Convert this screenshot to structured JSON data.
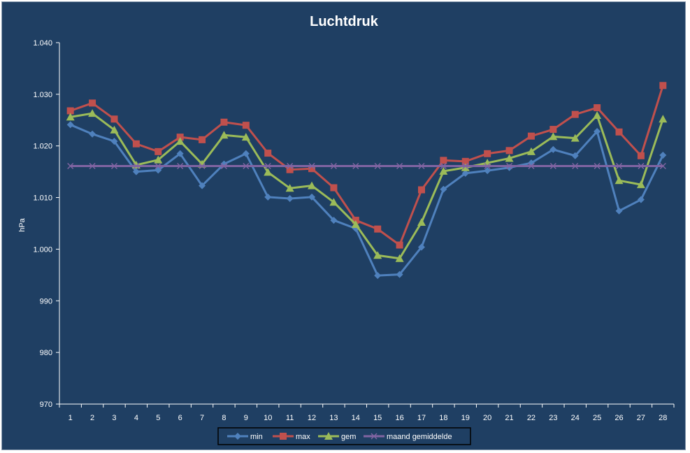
{
  "chart_data": {
    "type": "line",
    "title": "Luchtdruk",
    "xlabel": "",
    "ylabel": "hPa",
    "ylim": [
      970,
      1040
    ],
    "y_ticks": [
      970,
      980,
      990,
      1000,
      1010,
      1020,
      1030,
      1040
    ],
    "y_tick_labels": [
      "970",
      "980",
      "990",
      "1.000",
      "1.010",
      "1.020",
      "1.030",
      "1.040"
    ],
    "categories": [
      "1",
      "2",
      "3",
      "4",
      "5",
      "6",
      "7",
      "8",
      "9",
      "10",
      "11",
      "12",
      "13",
      "14",
      "15",
      "16",
      "17",
      "18",
      "19",
      "20",
      "21",
      "22",
      "23",
      "24",
      "25",
      "26",
      "27",
      "28"
    ],
    "grid": false,
    "legend_position": "bottom",
    "series": [
      {
        "name": "min",
        "color": "#4f81bd",
        "marker": "diamond",
        "values": [
          1024.1,
          1022.3,
          1020.9,
          1015.0,
          1015.3,
          1018.5,
          1012.3,
          1016.5,
          1018.5,
          1010.1,
          1009.8,
          1010.1,
          1005.6,
          1004.0,
          994.9,
          995.1,
          1000.4,
          1011.6,
          1014.7,
          1015.2,
          1015.8,
          1016.7,
          1019.3,
          1018.1,
          1022.8,
          1007.4,
          1009.6,
          1018.2
        ]
      },
      {
        "name": "max",
        "color": "#c0504d",
        "marker": "square",
        "values": [
          1026.8,
          1028.3,
          1025.2,
          1020.4,
          1018.9,
          1021.7,
          1021.2,
          1024.6,
          1024.0,
          1018.6,
          1015.4,
          1015.6,
          1011.9,
          1005.6,
          1003.9,
          1000.8,
          1011.5,
          1017.2,
          1017.0,
          1018.5,
          1019.1,
          1021.9,
          1023.2,
          1026.1,
          1027.4,
          1022.7,
          1018.1,
          1031.7
        ]
      },
      {
        "name": "gem",
        "color": "#9bbb59",
        "marker": "triangle",
        "values": [
          1025.6,
          1026.3,
          1023.1,
          1016.3,
          1017.3,
          1020.9,
          1016.5,
          1022.1,
          1021.7,
          1014.9,
          1011.8,
          1012.3,
          1009.1,
          1004.8,
          998.8,
          998.2,
          1005.2,
          1015.1,
          1015.8,
          1016.7,
          1017.6,
          1018.9,
          1021.8,
          1021.5,
          1025.9,
          1013.3,
          1012.5,
          1025.2
        ]
      },
      {
        "name": "maand gemiddelde",
        "color": "#8064a2",
        "marker": "x",
        "values": [
          1016.1,
          1016.1,
          1016.1,
          1016.1,
          1016.1,
          1016.1,
          1016.1,
          1016.1,
          1016.1,
          1016.1,
          1016.1,
          1016.1,
          1016.1,
          1016.1,
          1016.1,
          1016.1,
          1016.1,
          1016.1,
          1016.1,
          1016.1,
          1016.1,
          1016.1,
          1016.1,
          1016.1,
          1016.1,
          1016.1,
          1016.1,
          1016.1
        ]
      }
    ]
  }
}
